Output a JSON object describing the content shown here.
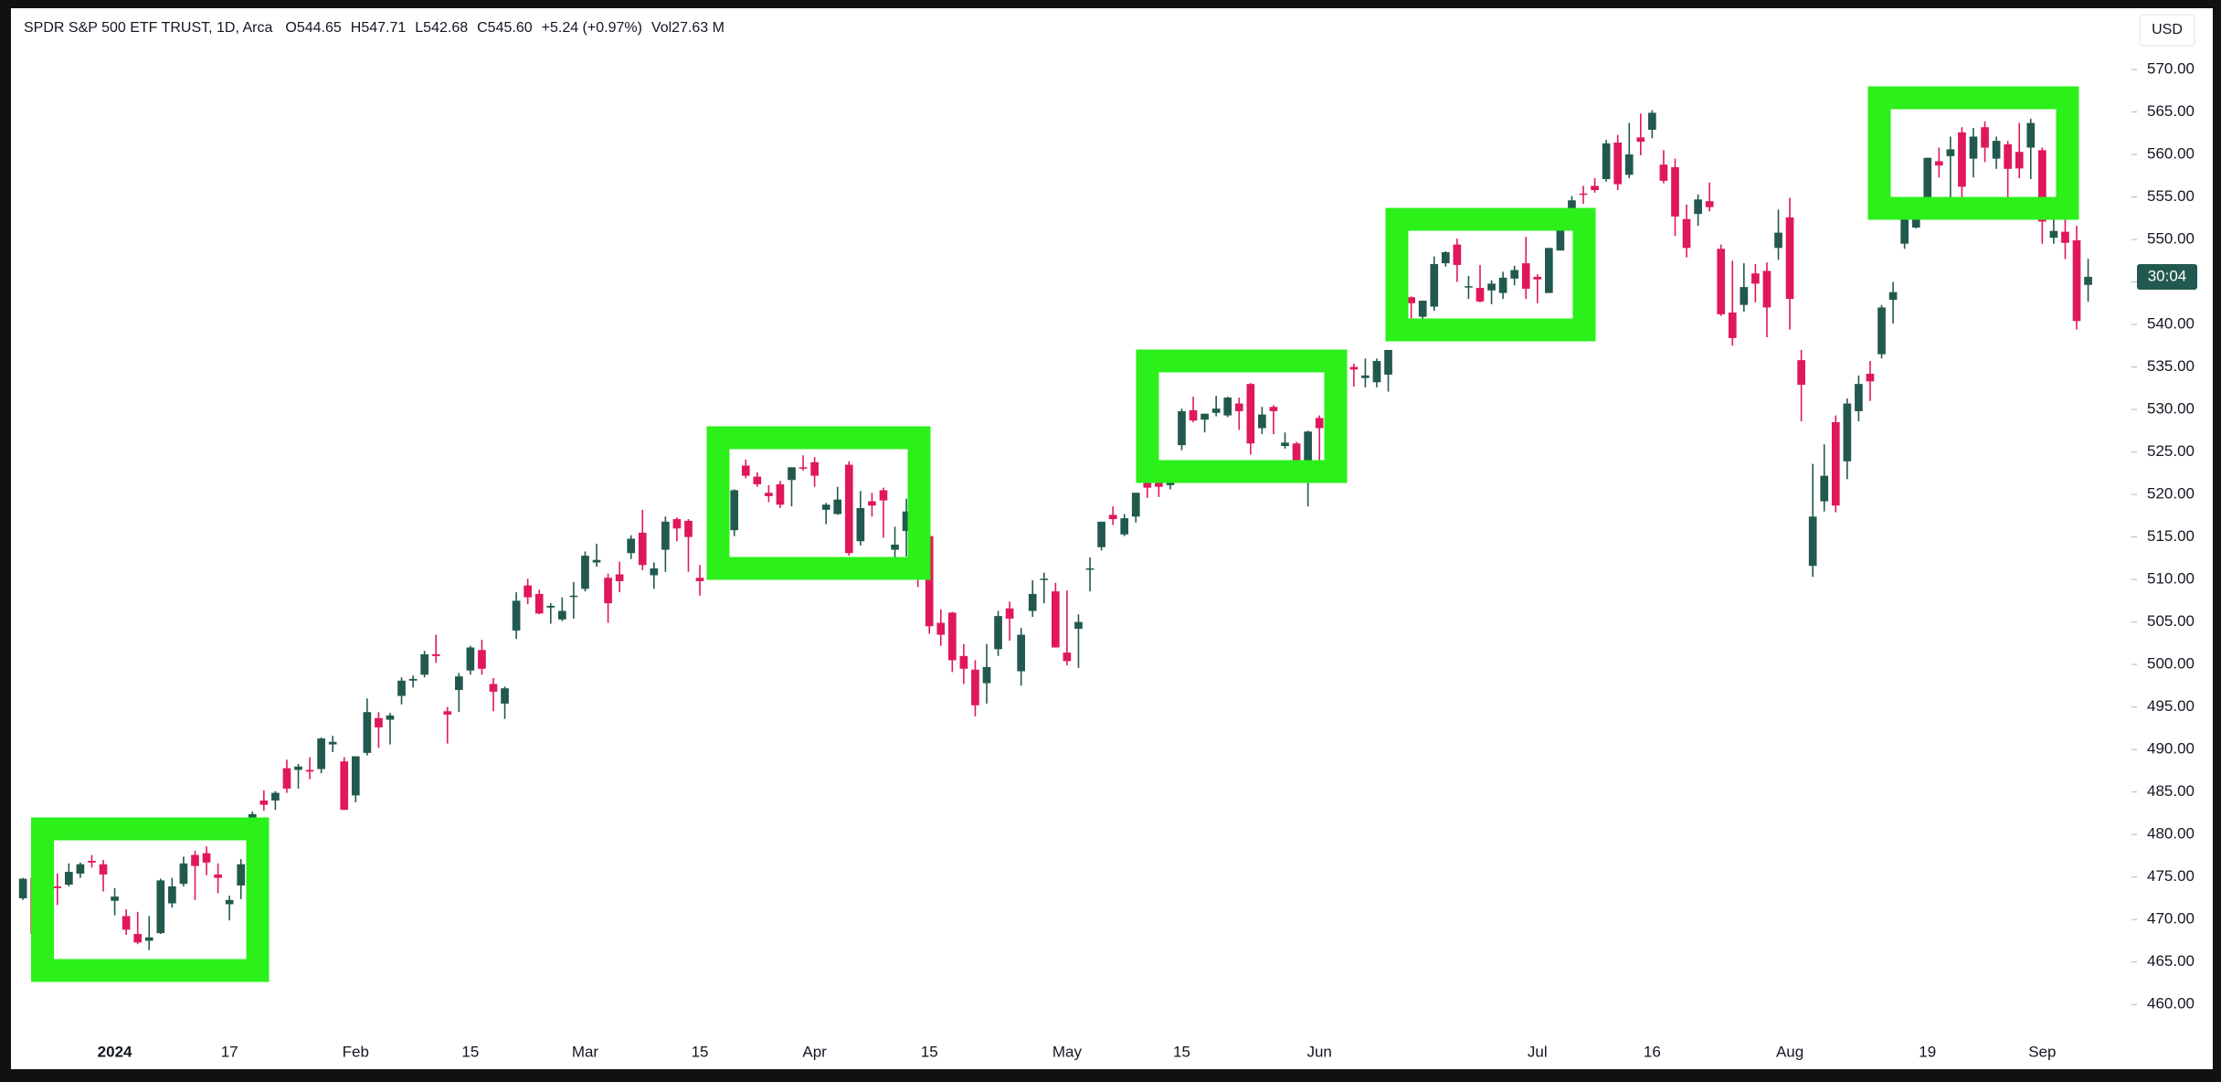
{
  "chart_data": {
    "type": "candlestick",
    "title": "SPDR S&P 500 ETF TRUST, 1D, Arca",
    "ohlc_legend": [
      "O544.65",
      "H547.71",
      "L542.68",
      "C545.60",
      "+5.24 (+0.97%)",
      "Vol27.63 M"
    ],
    "currency": "USD",
    "countdown": "30:04",
    "up_color": "#22594e",
    "down_color": "#e0185a",
    "grid": false,
    "ylim": [
      456.5,
      576.5
    ],
    "yticks": [
      {
        "value": 460,
        "label": "460.00"
      },
      {
        "value": 465,
        "label": "465.00"
      },
      {
        "value": 470,
        "label": "470.00"
      },
      {
        "value": 475,
        "label": "475.00"
      },
      {
        "value": 480,
        "label": "480.00"
      },
      {
        "value": 485,
        "label": "485.00"
      },
      {
        "value": 490,
        "label": "490.00"
      },
      {
        "value": 495,
        "label": "495.00"
      },
      {
        "value": 500,
        "label": "500.00"
      },
      {
        "value": 505,
        "label": "505.00"
      },
      {
        "value": 510,
        "label": "510.00"
      },
      {
        "value": 515,
        "label": "515.00"
      },
      {
        "value": 520,
        "label": "520.00"
      },
      {
        "value": 525,
        "label": "525.00"
      },
      {
        "value": 530,
        "label": "530.00"
      },
      {
        "value": 535,
        "label": "535.00"
      },
      {
        "value": 540,
        "label": "540.00"
      },
      {
        "value": 545,
        "label": "545.00"
      },
      {
        "value": 550,
        "label": "550.00"
      },
      {
        "value": 555,
        "label": "555.00"
      },
      {
        "value": 560,
        "label": "560.00"
      },
      {
        "value": 565,
        "label": "565.00"
      },
      {
        "value": 570,
        "label": "570.00"
      }
    ],
    "categories": [
      null,
      null,
      null,
      null,
      null,
      null,
      null,
      null,
      "2024",
      null,
      null,
      null,
      null,
      null,
      null,
      null,
      null,
      null,
      "17",
      null,
      null,
      null,
      null,
      null,
      null,
      null,
      null,
      null,
      null,
      "Feb",
      null,
      null,
      null,
      null,
      null,
      null,
      null,
      null,
      null,
      "15",
      null,
      null,
      null,
      null,
      null,
      null,
      null,
      null,
      null,
      "Mar",
      null,
      null,
      null,
      null,
      null,
      null,
      null,
      null,
      null,
      "15",
      null,
      null,
      null,
      null,
      null,
      null,
      null,
      null,
      null,
      "Apr",
      null,
      null,
      null,
      null,
      null,
      null,
      null,
      null,
      null,
      "15",
      null,
      null,
      null,
      null,
      null,
      null,
      null,
      null,
      null,
      null,
      null,
      "May",
      null,
      null,
      null,
      null,
      null,
      null,
      null,
      null,
      null,
      "15",
      null,
      null,
      null,
      null,
      null,
      null,
      null,
      null,
      null,
      null,
      null,
      "Jun",
      null,
      null,
      null,
      null,
      null,
      null,
      null,
      null,
      null,
      null,
      null,
      null,
      null,
      null,
      null,
      null,
      null,
      null,
      "Jul",
      null,
      null,
      null,
      null,
      null,
      null,
      null,
      null,
      null,
      "16",
      null,
      null,
      null,
      null,
      null,
      null,
      null,
      null,
      null,
      null,
      null,
      "Aug",
      null,
      null,
      null,
      null,
      null,
      null,
      null,
      null,
      null,
      null,
      null,
      "19",
      null,
      null,
      null,
      null,
      null,
      null,
      null,
      null,
      null,
      "Sep",
      null,
      null,
      null,
      null
    ],
    "ohlc": [
      [
        472.5,
        474.9,
        472.3,
        474.8
      ],
      [
        474.9,
        475.9,
        467.9,
        468.3
      ],
      [
        471.3,
        472.9,
        468.8,
        472.7
      ],
      [
        473.9,
        475.4,
        471.7,
        473.7
      ],
      [
        474.1,
        476.6,
        473.9,
        475.6
      ],
      [
        475.4,
        476.7,
        474.9,
        476.5
      ],
      [
        476.9,
        477.6,
        476.1,
        476.7
      ],
      [
        476.5,
        477.0,
        473.3,
        475.3
      ],
      [
        472.2,
        473.7,
        470.5,
        472.7
      ],
      [
        470.4,
        471.2,
        468.2,
        468.8
      ],
      [
        468.3,
        470.9,
        467.1,
        467.3
      ],
      [
        467.5,
        470.4,
        466.4,
        467.9
      ],
      [
        468.4,
        474.8,
        468.3,
        474.6
      ],
      [
        471.9,
        474.9,
        471.4,
        473.9
      ],
      [
        474.2,
        477.4,
        473.9,
        476.6
      ],
      [
        477.6,
        478.1,
        472.3,
        476.3
      ],
      [
        477.8,
        478.6,
        475.2,
        476.7
      ],
      [
        475.3,
        476.6,
        473.1,
        474.9
      ],
      [
        471.8,
        472.8,
        469.9,
        472.3
      ],
      [
        474.0,
        477.1,
        472.4,
        476.5
      ],
      [
        477.7,
        482.7,
        476.5,
        482.4
      ],
      [
        484.0,
        485.2,
        482.8,
        483.5
      ],
      [
        484.0,
        485.1,
        482.9,
        484.9
      ],
      [
        487.8,
        488.8,
        484.9,
        485.4
      ],
      [
        487.6,
        488.3,
        485.4,
        488.0
      ],
      [
        487.6,
        489.1,
        486.5,
        487.4
      ],
      [
        487.7,
        491.4,
        487.2,
        491.3
      ],
      [
        490.6,
        491.6,
        489.7,
        490.9
      ],
      [
        488.6,
        489.1,
        482.9,
        482.9
      ],
      [
        484.6,
        489.2,
        483.8,
        489.2
      ],
      [
        489.6,
        496.0,
        489.3,
        494.4
      ],
      [
        493.7,
        494.4,
        490.2,
        492.6
      ],
      [
        493.5,
        494.3,
        490.6,
        494.0
      ],
      [
        496.3,
        498.5,
        495.3,
        498.1
      ],
      [
        498.1,
        498.7,
        497.3,
        498.3
      ],
      [
        498.8,
        501.6,
        498.5,
        501.2
      ],
      [
        501.2,
        503.5,
        500.2,
        501.0
      ],
      [
        494.5,
        495.0,
        490.7,
        494.1
      ],
      [
        497.0,
        499.0,
        494.4,
        498.6
      ],
      [
        499.3,
        502.2,
        498.8,
        502.0
      ],
      [
        501.7,
        502.9,
        498.8,
        499.5
      ],
      [
        497.7,
        498.4,
        494.5,
        496.8
      ],
      [
        495.4,
        497.4,
        493.6,
        497.2
      ],
      [
        504.0,
        508.5,
        503.0,
        507.5
      ],
      [
        509.3,
        510.1,
        507.1,
        507.9
      ],
      [
        508.3,
        508.8,
        505.9,
        506.0
      ],
      [
        506.7,
        507.2,
        504.8,
        506.9
      ],
      [
        505.3,
        507.9,
        505.1,
        506.3
      ],
      [
        508.1,
        509.7,
        505.4,
        508.1
      ],
      [
        508.9,
        513.3,
        508.6,
        512.8
      ],
      [
        512.0,
        514.2,
        511.5,
        512.3
      ],
      [
        510.2,
        510.7,
        504.9,
        507.2
      ],
      [
        510.6,
        512.1,
        508.5,
        509.8
      ],
      [
        513.1,
        515.2,
        512.4,
        514.8
      ],
      [
        515.5,
        518.2,
        511.1,
        511.7
      ],
      [
        510.5,
        512.0,
        508.9,
        511.3
      ],
      [
        513.5,
        517.4,
        510.9,
        516.8
      ],
      [
        517.1,
        517.3,
        514.5,
        516.0
      ],
      [
        516.9,
        517.1,
        510.9,
        515.0
      ],
      [
        510.2,
        511.7,
        508.1,
        509.8
      ],
      [
        514.0,
        515.5,
        512.4,
        512.9
      ],
      [
        512.2,
        516.0,
        511.8,
        515.7
      ],
      [
        515.8,
        520.6,
        515.1,
        520.5
      ],
      [
        523.4,
        524.1,
        521.9,
        522.2
      ],
      [
        522.1,
        522.6,
        520.9,
        521.2
      ],
      [
        520.2,
        521.1,
        519.1,
        519.8
      ],
      [
        521.2,
        521.6,
        518.4,
        518.8
      ],
      [
        521.7,
        523.2,
        518.6,
        523.2
      ],
      [
        523.2,
        524.6,
        522.8,
        523.1
      ],
      [
        523.8,
        524.4,
        520.9,
        522.2
      ],
      [
        518.2,
        519.0,
        516.5,
        518.8
      ],
      [
        517.7,
        520.9,
        517.6,
        519.4
      ],
      [
        523.5,
        523.9,
        512.8,
        513.1
      ],
      [
        514.5,
        520.4,
        514.0,
        518.4
      ],
      [
        519.2,
        520.2,
        517.4,
        518.7
      ],
      [
        520.5,
        520.8,
        514.9,
        519.3
      ],
      [
        513.5,
        516.2,
        512.1,
        514.1
      ],
      [
        515.7,
        519.5,
        512.7,
        518.0
      ],
      [
        514.4,
        515.8,
        509.1,
        510.9
      ],
      [
        515.1,
        515.3,
        503.6,
        504.5
      ],
      [
        504.9,
        506.5,
        502.2,
        503.5
      ],
      [
        506.1,
        506.2,
        499.1,
        500.5
      ],
      [
        501.0,
        502.4,
        497.7,
        499.5
      ],
      [
        499.4,
        500.5,
        493.9,
        495.2
      ],
      [
        497.8,
        502.4,
        495.4,
        499.7
      ],
      [
        501.8,
        506.3,
        501.0,
        505.7
      ],
      [
        506.6,
        507.4,
        502.8,
        505.4
      ],
      [
        499.2,
        504.3,
        497.5,
        503.5
      ],
      [
        506.3,
        509.9,
        505.6,
        508.3
      ],
      [
        510.1,
        510.8,
        507.2,
        510.1
      ],
      [
        508.6,
        509.6,
        502.0,
        502.0
      ],
      [
        501.4,
        508.7,
        499.9,
        500.4
      ],
      [
        504.2,
        505.9,
        499.6,
        505.0
      ],
      [
        511.2,
        512.6,
        508.6,
        511.3
      ],
      [
        513.8,
        516.8,
        513.4,
        516.8
      ],
      [
        517.6,
        518.6,
        516.4,
        517.1
      ],
      [
        515.3,
        517.7,
        515.1,
        517.2
      ],
      [
        517.4,
        520.2,
        516.7,
        520.2
      ],
      [
        521.8,
        522.6,
        519.6,
        520.8
      ],
      [
        522.6,
        522.7,
        519.7,
        520.9
      ],
      [
        521.1,
        523.8,
        520.6,
        523.3
      ],
      [
        525.8,
        530.1,
        525.2,
        529.8
      ],
      [
        529.9,
        531.5,
        528.5,
        528.7
      ],
      [
        528.8,
        529.5,
        527.3,
        529.5
      ],
      [
        529.6,
        531.6,
        529.2,
        530.1
      ],
      [
        529.3,
        531.5,
        529.1,
        531.4
      ],
      [
        530.7,
        531.4,
        527.6,
        529.8
      ],
      [
        533.0,
        533.1,
        524.7,
        526.0
      ],
      [
        527.8,
        530.3,
        527.1,
        529.4
      ],
      [
        530.3,
        530.5,
        527.1,
        529.8
      ],
      [
        525.7,
        527.3,
        525.4,
        526.1
      ],
      [
        526.0,
        526.2,
        521.7,
        522.6
      ],
      [
        523.6,
        527.5,
        518.6,
        527.4
      ],
      [
        529.0,
        529.3,
        522.6,
        527.8
      ],
      [
        526.5,
        529.2,
        525.6,
        528.4
      ],
      [
        530.8,
        534.7,
        529.3,
        534.7
      ],
      [
        535.0,
        535.4,
        532.7,
        534.7
      ],
      [
        533.7,
        536.0,
        532.6,
        534.0
      ],
      [
        533.2,
        536.0,
        532.6,
        535.7
      ],
      [
        534.1,
        537.0,
        532.1,
        537.0
      ],
      [
        541.6,
        544.1,
        540.3,
        541.4
      ],
      [
        543.2,
        543.3,
        539.6,
        542.5
      ],
      [
        540.9,
        542.8,
        539.9,
        542.8
      ],
      [
        542.1,
        548.0,
        541.6,
        547.1
      ],
      [
        547.2,
        548.6,
        546.8,
        548.5
      ],
      [
        549.4,
        550.1,
        545.0,
        547.0
      ],
      [
        544.4,
        545.7,
        543.0,
        544.5
      ],
      [
        544.3,
        547.0,
        542.6,
        542.7
      ],
      [
        544.0,
        545.2,
        542.4,
        544.8
      ],
      [
        543.7,
        546.2,
        543.0,
        545.5
      ],
      [
        545.4,
        546.9,
        544.6,
        546.4
      ],
      [
        547.2,
        550.3,
        543.0,
        544.2
      ],
      [
        545.6,
        545.9,
        542.5,
        545.3
      ],
      [
        543.7,
        549.0,
        543.7,
        549.0
      ],
      [
        548.7,
        551.8,
        548.7,
        551.5
      ],
      [
        551.8,
        555.1,
        551.1,
        554.6
      ],
      [
        555.4,
        556.3,
        554.2,
        555.3
      ],
      [
        556.3,
        557.2,
        555.5,
        555.8
      ],
      [
        557.1,
        561.7,
        556.8,
        561.3
      ],
      [
        561.4,
        562.3,
        555.8,
        556.5
      ],
      [
        557.6,
        563.7,
        557.2,
        560.0
      ],
      [
        562.0,
        564.8,
        559.9,
        561.5
      ],
      [
        562.9,
        565.2,
        561.9,
        564.9
      ],
      [
        558.8,
        560.5,
        556.6,
        556.9
      ],
      [
        558.5,
        559.5,
        550.4,
        552.7
      ],
      [
        552.4,
        554.1,
        547.9,
        549.0
      ],
      [
        553.0,
        555.3,
        551.6,
        554.7
      ],
      [
        554.5,
        556.7,
        553.3,
        553.8
      ],
      [
        548.9,
        549.4,
        541.0,
        541.2
      ],
      [
        541.4,
        547.5,
        537.5,
        538.4
      ],
      [
        542.3,
        547.2,
        541.5,
        544.4
      ],
      [
        546.0,
        547.1,
        542.6,
        544.8
      ],
      [
        546.3,
        547.3,
        538.5,
        542.0
      ],
      [
        549.0,
        553.5,
        547.6,
        550.8
      ],
      [
        552.6,
        554.9,
        539.4,
        543.0
      ],
      [
        535.8,
        537.0,
        528.6,
        532.9
      ],
      [
        511.6,
        523.6,
        510.3,
        517.4
      ],
      [
        519.2,
        525.9,
        518.0,
        522.2
      ],
      [
        528.5,
        529.3,
        517.9,
        518.7
      ],
      [
        523.9,
        531.3,
        521.8,
        530.7
      ],
      [
        529.8,
        534.0,
        528.6,
        533.0
      ],
      [
        534.2,
        535.7,
        531.0,
        533.3
      ],
      [
        536.5,
        542.3,
        536.0,
        542.0
      ],
      [
        542.9,
        545.0,
        540.1,
        543.8
      ],
      [
        549.5,
        553.4,
        548.9,
        553.1
      ],
      [
        551.4,
        555.0,
        551.3,
        554.3
      ],
      [
        554.7,
        559.6,
        553.9,
        559.6
      ],
      [
        559.2,
        560.8,
        557.3,
        558.7
      ],
      [
        559.8,
        562.1,
        554.7,
        560.6
      ],
      [
        562.6,
        563.2,
        555.0,
        556.2
      ],
      [
        559.5,
        563.1,
        557.3,
        562.1
      ],
      [
        563.2,
        563.9,
        559.1,
        560.8
      ],
      [
        559.5,
        562.1,
        558.3,
        561.6
      ],
      [
        561.2,
        561.6,
        555.0,
        558.3
      ],
      [
        560.3,
        563.7,
        557.2,
        558.35
      ],
      [
        560.8,
        564.2,
        557.1,
        563.7
      ],
      [
        560.5,
        560.8,
        549.5,
        552.1
      ],
      [
        550.2,
        554.4,
        549.5,
        551.0
      ],
      [
        550.9,
        553.8,
        547.7,
        549.6
      ],
      [
        549.9,
        551.6,
        539.4,
        540.4
      ],
      [
        544.65,
        547.71,
        542.68,
        545.6
      ]
    ]
  }
}
